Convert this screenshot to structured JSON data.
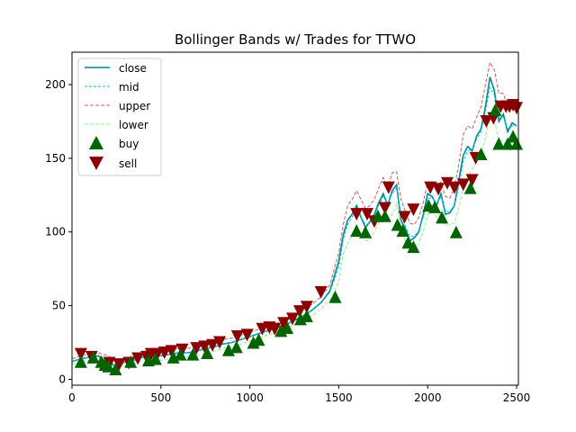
{
  "chart_data": {
    "type": "line",
    "title": "Bollinger Bands w/ Trades for TTWO",
    "xlabel": "",
    "ylabel": "",
    "xlim": [
      0,
      2510
    ],
    "ylim": [
      -4,
      222
    ],
    "x_ticks": [
      0,
      500,
      1000,
      1500,
      2000,
      2500
    ],
    "y_ticks": [
      0,
      50,
      100,
      150,
      200
    ],
    "grid": false,
    "legend_position": "top-left",
    "colors": {
      "close": "#008b8b",
      "mid": "#00bfff",
      "upper": "#cd5c5c",
      "lower": "#90ee90",
      "buy": "#006400",
      "sell": "#8b0000"
    },
    "x": [
      0,
      50,
      100,
      150,
      200,
      250,
      300,
      350,
      400,
      450,
      500,
      550,
      600,
      650,
      700,
      750,
      800,
      850,
      900,
      950,
      1000,
      1050,
      1100,
      1150,
      1200,
      1250,
      1300,
      1350,
      1400,
      1450,
      1500,
      1525,
      1550,
      1575,
      1600,
      1625,
      1650,
      1675,
      1700,
      1725,
      1750,
      1775,
      1800,
      1825,
      1850,
      1875,
      1900,
      1925,
      1950,
      1975,
      2000,
      2025,
      2050,
      2075,
      2100,
      2125,
      2150,
      2175,
      2200,
      2225,
      2250,
      2275,
      2300,
      2325,
      2350,
      2375,
      2400,
      2425,
      2450,
      2475,
      2500
    ],
    "series": [
      {
        "name": "close",
        "style": "solid",
        "values": [
          12,
          14,
          15,
          16,
          11,
          9,
          12,
          13,
          15,
          16,
          16,
          17,
          18,
          18,
          19,
          21,
          22,
          24,
          25,
          27,
          29,
          31,
          33,
          35,
          37,
          40,
          43,
          47,
          52,
          60,
          80,
          98,
          108,
          112,
          118,
          110,
          103,
          107,
          112,
          120,
          126,
          118,
          128,
          132,
          108,
          102,
          94,
          96,
          100,
          112,
          126,
          124,
          118,
          126,
          112,
          113,
          118,
          135,
          152,
          158,
          155,
          165,
          170,
          185,
          205,
          196,
          175,
          180,
          168,
          174,
          172
        ]
      },
      {
        "name": "mid",
        "style": "dashed",
        "values": [
          12,
          14,
          15,
          15,
          12,
          10,
          12,
          13,
          15,
          16,
          16,
          17,
          18,
          18,
          19,
          21,
          22,
          24,
          25,
          27,
          29,
          31,
          33,
          35,
          37,
          40,
          43,
          47,
          52,
          59,
          76,
          95,
          105,
          110,
          115,
          110,
          105,
          106,
          111,
          118,
          124,
          119,
          126,
          130,
          112,
          104,
          97,
          97,
          101,
          110,
          123,
          123,
          119,
          124,
          114,
          114,
          118,
          131,
          148,
          155,
          156,
          163,
          168,
          182,
          198,
          193,
          178,
          178,
          170,
          172,
          172
        ]
      },
      {
        "name": "upper",
        "style": "dashed",
        "values": [
          14,
          16,
          17,
          18,
          16,
          13,
          14,
          15,
          17,
          18,
          19,
          20,
          21,
          21,
          22,
          24,
          25,
          27,
          28,
          30,
          32,
          34,
          36,
          38,
          40,
          43,
          47,
          51,
          56,
          64,
          86,
          105,
          118,
          122,
          128,
          122,
          116,
          118,
          122,
          130,
          137,
          130,
          140,
          141,
          122,
          114,
          106,
          105,
          110,
          120,
          134,
          132,
          128,
          134,
          124,
          123,
          130,
          146,
          166,
          172,
          170,
          178,
          185,
          200,
          215,
          210,
          194,
          194,
          185,
          188,
          186
        ]
      },
      {
        "name": "lower",
        "style": "dashed",
        "values": [
          10,
          12,
          13,
          12,
          8,
          7,
          10,
          11,
          13,
          14,
          13,
          14,
          15,
          15,
          16,
          18,
          19,
          21,
          22,
          24,
          26,
          28,
          30,
          32,
          34,
          37,
          39,
          43,
          48,
          54,
          66,
          85,
          92,
          98,
          102,
          98,
          94,
          95,
          100,
          106,
          111,
          108,
          112,
          119,
          102,
          94,
          88,
          89,
          92,
          100,
          112,
          114,
          110,
          114,
          104,
          105,
          106,
          116,
          130,
          138,
          142,
          148,
          151,
          164,
          181,
          176,
          162,
          162,
          155,
          156,
          158
        ]
      }
    ],
    "buy": {
      "x": [
        50,
        120,
        165,
        185,
        205,
        245,
        330,
        430,
        470,
        570,
        610,
        680,
        760,
        880,
        925,
        1020,
        1050,
        1175,
        1210,
        1285,
        1320,
        1480,
        1600,
        1650,
        1720,
        1760,
        1830,
        1860,
        1890,
        1920,
        2005,
        2040,
        2080,
        2160,
        2240,
        2300,
        2380,
        2400,
        2450,
        2480,
        2500
      ],
      "y": [
        12,
        15,
        12,
        10,
        9,
        7,
        12,
        13,
        14,
        15,
        17,
        17,
        18,
        20,
        22,
        25,
        27,
        33,
        35,
        41,
        43,
        56,
        101,
        100,
        111,
        111,
        105,
        101,
        93,
        90,
        118,
        117,
        110,
        100,
        130,
        153,
        183,
        160,
        160,
        165,
        160
      ]
    },
    "sell": {
      "x": [
        50,
        110,
        210,
        265,
        320,
        370,
        420,
        445,
        480,
        520,
        560,
        620,
        700,
        745,
        790,
        830,
        930,
        985,
        1070,
        1110,
        1140,
        1190,
        1240,
        1280,
        1320,
        1400,
        1600,
        1660,
        1700,
        1760,
        1780,
        1870,
        1920,
        2015,
        2060,
        2110,
        2150,
        2200,
        2250,
        2270,
        2330,
        2370,
        2410,
        2440,
        2460,
        2480,
        2500
      ],
      "y": [
        17,
        15,
        11,
        10,
        11,
        14,
        15,
        17,
        17,
        18,
        19,
        20,
        21,
        22,
        23,
        25,
        29,
        30,
        34,
        35,
        34,
        38,
        41,
        46,
        49,
        59,
        112,
        112,
        107,
        116,
        130,
        110,
        115,
        130,
        129,
        133,
        130,
        132,
        135,
        150,
        175,
        177,
        185,
        185,
        185,
        186,
        184
      ]
    },
    "legend": [
      "close",
      "mid",
      "upper",
      "lower",
      "buy",
      "sell"
    ]
  }
}
